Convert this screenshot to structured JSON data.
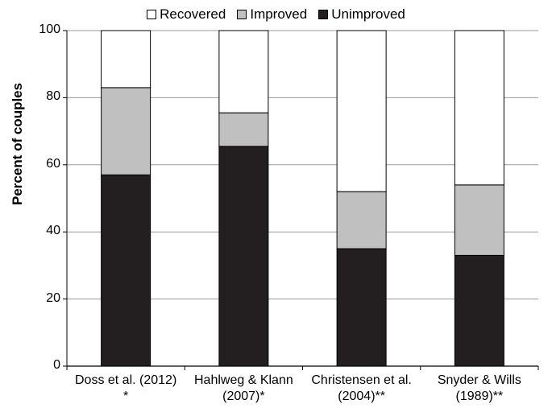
{
  "chart_data": {
    "type": "bar",
    "stacked": true,
    "ylabel": "Percent of couples",
    "ylim": [
      0,
      100
    ],
    "yticks": [
      0,
      20,
      40,
      60,
      80,
      100
    ],
    "grid": true,
    "legend_position": "top",
    "categories": [
      [
        "Doss et al. (2012)",
        "*"
      ],
      [
        "Hahlweg & Klann",
        "(2007)*"
      ],
      [
        "Christensen et al.",
        "(2004)**"
      ],
      [
        "Snyder & Wills",
        "(1989)**"
      ]
    ],
    "series": [
      {
        "name": "Unimproved",
        "color": "#231f20",
        "values": [
          57,
          65.5,
          35,
          33
        ]
      },
      {
        "name": "Improved",
        "color": "#c0c0c0",
        "values": [
          26,
          10,
          17,
          21
        ]
      },
      {
        "name": "Recovered",
        "color": "#ffffff",
        "values": [
          17,
          24.5,
          48,
          46
        ]
      }
    ],
    "legend_order": [
      "Recovered",
      "Improved",
      "Unimproved"
    ]
  }
}
